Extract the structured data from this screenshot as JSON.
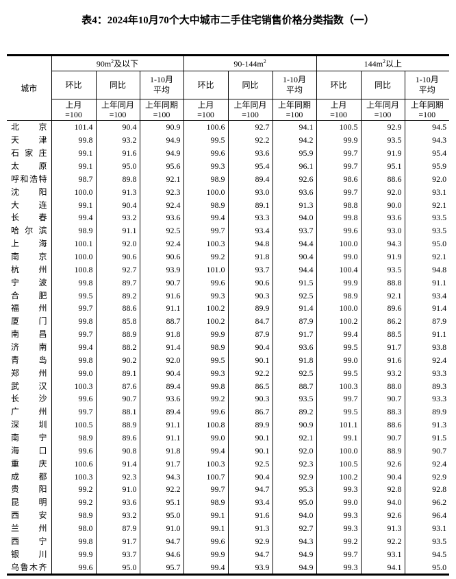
{
  "title": "表4：2024年10月70个大中城市二手住宅销售价格分类指数（一）",
  "header": {
    "city_label": "城市",
    "groups": [
      {
        "base": "90m",
        "sup": "2",
        "suffix": "及以下"
      },
      {
        "base": "90-144m",
        "sup": "2",
        "suffix": ""
      },
      {
        "base": "144m",
        "sup": "2",
        "suffix": "以上"
      }
    ],
    "sub": [
      "环比",
      "同比",
      "1-10月\n平均"
    ],
    "base_row": [
      "上月\n=100",
      "上年同月\n=100",
      "上年同期\n=100"
    ]
  },
  "rows": [
    [
      "北京",
      "101.4",
      "90.4",
      "90.9",
      "100.6",
      "92.7",
      "94.1",
      "100.5",
      "92.9",
      "94.5"
    ],
    [
      "天津",
      "99.8",
      "93.2",
      "94.9",
      "99.5",
      "92.2",
      "94.2",
      "99.9",
      "93.5",
      "94.3"
    ],
    [
      "石家庄",
      "99.1",
      "91.6",
      "94.9",
      "99.6",
      "93.6",
      "95.9",
      "99.7",
      "91.9",
      "95.4"
    ],
    [
      "太原",
      "99.1",
      "95.0",
      "95.6",
      "99.3",
      "95.4",
      "96.1",
      "99.7",
      "95.1",
      "95.9"
    ],
    [
      "呼和浩特",
      "98.7",
      "89.8",
      "92.1",
      "98.9",
      "89.4",
      "92.6",
      "98.6",
      "88.6",
      "92.0"
    ],
    [
      "沈阳",
      "100.0",
      "91.3",
      "92.3",
      "100.0",
      "93.0",
      "93.6",
      "99.7",
      "92.0",
      "93.1"
    ],
    [
      "大连",
      "99.1",
      "90.4",
      "92.4",
      "98.9",
      "89.1",
      "91.3",
      "98.8",
      "90.0",
      "92.1"
    ],
    [
      "长春",
      "99.4",
      "93.2",
      "93.6",
      "99.4",
      "93.3",
      "94.0",
      "99.8",
      "93.6",
      "93.5"
    ],
    [
      "哈尔滨",
      "98.9",
      "91.1",
      "92.5",
      "99.7",
      "93.4",
      "93.7",
      "99.6",
      "93.0",
      "93.5"
    ],
    [
      "上海",
      "100.1",
      "92.0",
      "92.4",
      "100.3",
      "94.8",
      "94.4",
      "100.0",
      "94.3",
      "95.0"
    ],
    [
      "南京",
      "100.0",
      "90.6",
      "90.6",
      "99.2",
      "91.8",
      "90.4",
      "99.0",
      "91.9",
      "92.1"
    ],
    [
      "杭州",
      "100.8",
      "92.7",
      "93.9",
      "101.0",
      "93.7",
      "94.4",
      "100.4",
      "93.5",
      "94.8"
    ],
    [
      "宁波",
      "99.8",
      "89.7",
      "90.7",
      "99.6",
      "90.6",
      "91.5",
      "99.9",
      "88.8",
      "91.1"
    ],
    [
      "合肥",
      "99.5",
      "89.2",
      "91.6",
      "99.3",
      "90.3",
      "92.5",
      "98.9",
      "92.1",
      "93.4"
    ],
    [
      "福州",
      "99.7",
      "88.6",
      "91.1",
      "100.2",
      "89.9",
      "91.4",
      "100.0",
      "89.6",
      "91.4"
    ],
    [
      "厦门",
      "99.8",
      "85.8",
      "88.7",
      "100.2",
      "84.7",
      "87.9",
      "100.2",
      "86.2",
      "87.9"
    ],
    [
      "南昌",
      "99.7",
      "88.9",
      "91.8",
      "99.9",
      "87.9",
      "91.7",
      "99.4",
      "88.5",
      "91.1"
    ],
    [
      "济南",
      "99.4",
      "88.2",
      "91.4",
      "98.9",
      "90.4",
      "93.6",
      "99.5",
      "91.7",
      "93.8"
    ],
    [
      "青岛",
      "99.8",
      "90.2",
      "92.0",
      "99.5",
      "90.1",
      "91.8",
      "99.0",
      "91.6",
      "92.4"
    ],
    [
      "郑州",
      "99.0",
      "89.1",
      "90.4",
      "99.3",
      "92.2",
      "92.5",
      "99.5",
      "93.2",
      "93.3"
    ],
    [
      "武汉",
      "100.3",
      "87.6",
      "89.4",
      "99.8",
      "86.5",
      "88.7",
      "100.3",
      "88.0",
      "89.3"
    ],
    [
      "长沙",
      "99.6",
      "90.7",
      "93.6",
      "99.2",
      "90.3",
      "93.5",
      "99.7",
      "90.7",
      "93.3"
    ],
    [
      "广州",
      "99.7",
      "88.1",
      "89.4",
      "99.6",
      "86.7",
      "89.2",
      "99.5",
      "88.3",
      "89.9"
    ],
    [
      "深圳",
      "100.5",
      "88.9",
      "91.1",
      "100.8",
      "89.9",
      "90.9",
      "101.1",
      "88.6",
      "91.3"
    ],
    [
      "南宁",
      "98.9",
      "89.6",
      "91.1",
      "99.0",
      "90.1",
      "92.1",
      "99.1",
      "90.7",
      "91.5"
    ],
    [
      "海口",
      "99.6",
      "90.8",
      "91.8",
      "99.4",
      "90.1",
      "92.0",
      "100.0",
      "88.9",
      "90.7"
    ],
    [
      "重庆",
      "100.6",
      "91.4",
      "91.7",
      "100.3",
      "92.5",
      "92.3",
      "100.5",
      "92.6",
      "92.4"
    ],
    [
      "成都",
      "100.3",
      "92.3",
      "94.3",
      "100.7",
      "90.4",
      "92.9",
      "100.2",
      "90.4",
      "92.9"
    ],
    [
      "贵阳",
      "99.2",
      "91.0",
      "92.2",
      "99.7",
      "94.7",
      "95.3",
      "99.3",
      "92.8",
      "92.8"
    ],
    [
      "昆明",
      "99.2",
      "93.6",
      "95.1",
      "98.9",
      "93.4",
      "95.0",
      "99.0",
      "94.0",
      "96.2"
    ],
    [
      "西安",
      "98.9",
      "93.2",
      "95.0",
      "99.1",
      "91.6",
      "94.0",
      "99.3",
      "92.6",
      "96.4"
    ],
    [
      "兰州",
      "98.0",
      "87.9",
      "91.0",
      "99.1",
      "91.3",
      "92.7",
      "99.3",
      "91.3",
      "93.1"
    ],
    [
      "西宁",
      "99.8",
      "91.7",
      "94.7",
      "99.6",
      "92.9",
      "94.3",
      "99.2",
      "92.2",
      "93.5"
    ],
    [
      "银川",
      "99.9",
      "93.7",
      "94.6",
      "99.9",
      "94.7",
      "94.9",
      "99.7",
      "93.1",
      "94.5"
    ],
    [
      "乌鲁木齐",
      "99.6",
      "95.0",
      "95.7",
      "99.4",
      "93.9",
      "94.9",
      "99.3",
      "94.1",
      "95.0"
    ]
  ]
}
